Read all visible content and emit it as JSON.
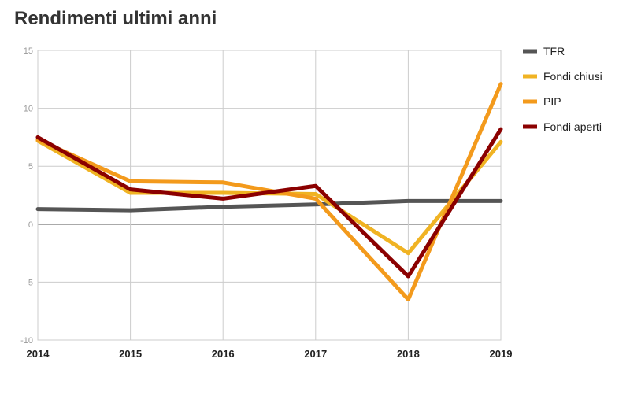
{
  "chart_data": {
    "type": "line",
    "title": "Rendimenti ultimi anni",
    "xlabel": "",
    "ylabel": "",
    "x": [
      "2014",
      "2015",
      "2016",
      "2017",
      "2018",
      "2019"
    ],
    "ylim": [
      -10,
      15
    ],
    "yticks": [
      -10,
      -5,
      0,
      5,
      10,
      15
    ],
    "grid": true,
    "legend_position": "right",
    "series": [
      {
        "name": "TFR",
        "color": "#555555",
        "values": [
          1.3,
          1.2,
          1.5,
          1.7,
          2.0,
          2.0
        ]
      },
      {
        "name": "Fondi chiusi",
        "color": "#f0b323",
        "values": [
          7.2,
          2.7,
          2.7,
          2.6,
          -2.5,
          7.1
        ]
      },
      {
        "name": "PIP",
        "color": "#f39a1c",
        "values": [
          7.3,
          3.7,
          3.6,
          2.2,
          -6.5,
          12.1
        ]
      },
      {
        "name": "Fondi aperti",
        "color": "#8b0000",
        "values": [
          7.5,
          3.0,
          2.2,
          3.3,
          -4.5,
          8.2
        ]
      }
    ]
  }
}
